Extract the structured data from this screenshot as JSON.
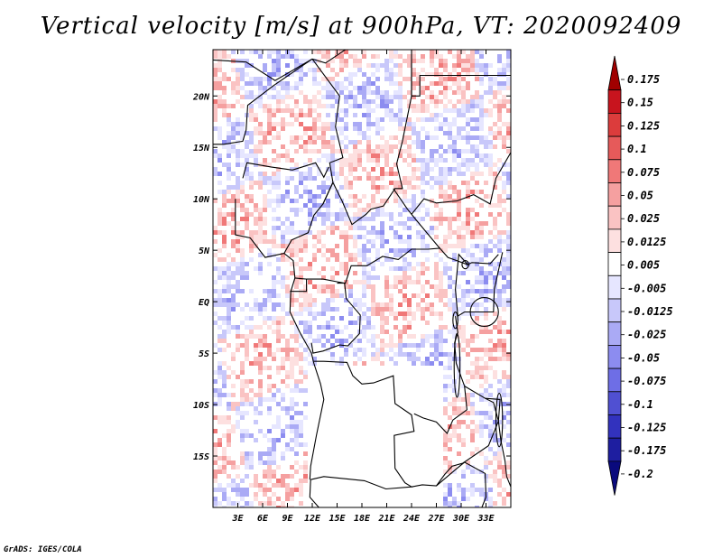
{
  "title": "Vertical velocity [m/s] at 900hPa, VT: 2020092409",
  "credit": "GrADS: IGES/COLA",
  "chart_data": {
    "type": "heatmap",
    "title": "Vertical velocity [m/s] at 900hPa, VT: 2020092409",
    "variable": "Vertical velocity",
    "units": "m/s",
    "level": "900hPa",
    "valid_time": "2020092409",
    "x_range": [
      0,
      36
    ],
    "y_range": [
      -20,
      24.5
    ],
    "x_ticks": [
      3,
      6,
      9,
      12,
      15,
      18,
      21,
      24,
      27,
      30,
      33
    ],
    "x_tick_labels": [
      "3E",
      "6E",
      "9E",
      "12E",
      "15E",
      "18E",
      "21E",
      "24E",
      "27E",
      "30E",
      "33E"
    ],
    "y_ticks": [
      20,
      15,
      10,
      5,
      0,
      -5,
      -10,
      -15
    ],
    "y_tick_labels": [
      "20N",
      "15N",
      "10N",
      "5N",
      "EQ",
      "5S",
      "10S",
      "15S"
    ],
    "colorbar": {
      "levels": [
        "0.175",
        "0.15",
        "0.125",
        "0.1",
        "0.075",
        "0.05",
        "0.025",
        "0.0125",
        "0.005",
        "-0.005",
        "-0.0125",
        "-0.025",
        "-0.05",
        "-0.075",
        "-0.1",
        "-0.125",
        "-0.175",
        "-0.2"
      ],
      "colors": [
        "#a00000",
        "#c8141e",
        "#dc3c3c",
        "#e65a5a",
        "#f07878",
        "#f5a0a0",
        "#fac3c3",
        "#fde0e0",
        "#ffffff",
        "#e6e6ff",
        "#c8c8fa",
        "#aaaaf5",
        "#8c8cf0",
        "#6e6ee6",
        "#5050d2",
        "#3232be",
        "#1e1ea0",
        "#0a0a7d"
      ]
    }
  }
}
